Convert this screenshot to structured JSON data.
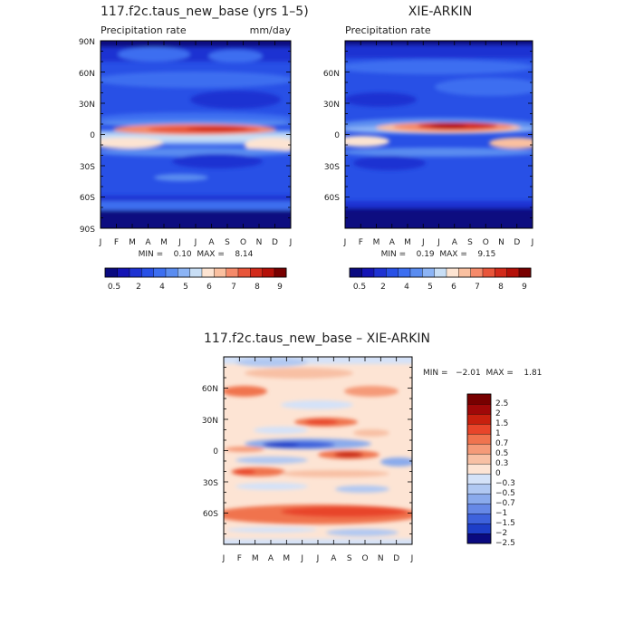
{
  "chart_data": [
    {
      "type": "heatmap",
      "panel": "model",
      "title": "117.f2c.taus_new_base (yrs 1–5)",
      "subtitle_left": "Precipitation rate",
      "subtitle_right": "mm/day",
      "x_tick_labels": [
        "J",
        "F",
        "M",
        "A",
        "M",
        "J",
        "J",
        "A",
        "S",
        "O",
        "N",
        "D",
        "J"
      ],
      "y_tick_labels": [
        "90N",
        "60N",
        "30N",
        "0",
        "30S",
        "60S",
        "90S"
      ],
      "xlim": [
        0,
        12
      ],
      "ylim": [
        -90,
        90
      ],
      "stats": "MIN =    0.10  MAX =    8.14",
      "colorbar_labels": [
        "0.5",
        "2",
        "4",
        "5",
        "6",
        "7",
        "8",
        "9"
      ]
    },
    {
      "type": "heatmap",
      "panel": "observations",
      "title": "XIE-ARKIN",
      "subtitle_left": "Precipitation rate",
      "x_tick_labels": [
        "J",
        "F",
        "M",
        "A",
        "M",
        "J",
        "J",
        "A",
        "S",
        "O",
        "N",
        "D",
        "J"
      ],
      "y_tick_labels": [
        "60N",
        "30N",
        "0",
        "30S",
        "60S"
      ],
      "xlim": [
        0,
        12
      ],
      "ylim": [
        -90,
        90
      ],
      "stats": "MIN =    0.19  MAX =    9.15",
      "colorbar_labels": [
        "0.5",
        "2",
        "4",
        "5",
        "6",
        "7",
        "8",
        "9"
      ]
    },
    {
      "type": "heatmap",
      "panel": "difference",
      "title": "117.f2c.taus_new_base – XIE-ARKIN",
      "x_tick_labels": [
        "J",
        "F",
        "M",
        "A",
        "M",
        "J",
        "J",
        "A",
        "S",
        "O",
        "N",
        "D",
        "J"
      ],
      "y_tick_labels": [
        "60N",
        "30N",
        "0",
        "30S",
        "60S"
      ],
      "xlim": [
        0,
        12
      ],
      "ylim": [
        -90,
        90
      ],
      "stats": "MIN =   −2.01  MAX =    1.81",
      "colorbar_labels": [
        "2.5",
        "2",
        "1.5",
        "1",
        "0.7",
        "0.5",
        "0.3",
        "0",
        "−0.3",
        "−0.5",
        "−0.7",
        "−1",
        "−1.5",
        "−2",
        "−2.5"
      ]
    }
  ],
  "colors": {
    "precip_scale": [
      "#0a0a80",
      "#1414b4",
      "#1e32d2",
      "#2850e6",
      "#3c6ef0",
      "#5a8cf0",
      "#8cb4f5",
      "#c8def5",
      "#fde4d2",
      "#fac0a0",
      "#f58a6a",
      "#e8553a",
      "#d22a1a",
      "#b41008",
      "#780000"
    ],
    "diff_scale": [
      "#780000",
      "#a00808",
      "#c8200e",
      "#e8452a",
      "#f0734e",
      "#f59a78",
      "#f8c0a4",
      "#fde4d4",
      "#d4e2f8",
      "#b0c8f2",
      "#8aaaec",
      "#6688e6",
      "#3e62dc",
      "#1e3ec8",
      "#0a0a80"
    ]
  }
}
